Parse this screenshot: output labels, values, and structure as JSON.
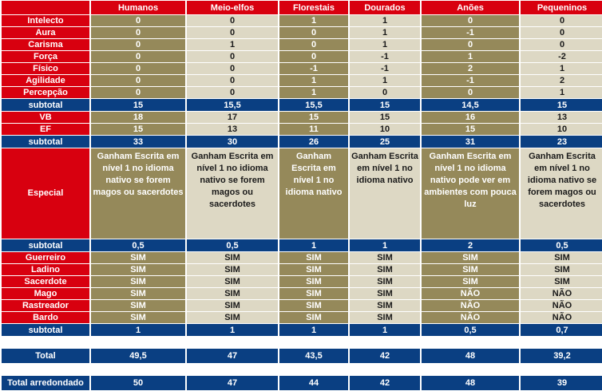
{
  "columns": [
    "Humanos",
    "Meio-elfos",
    "Florestais",
    "Dourados",
    "Anões",
    "Pequeninos"
  ],
  "attributes": [
    {
      "label": "Intelecto",
      "values": [
        "0",
        "0",
        "1",
        "1",
        "0",
        "0"
      ]
    },
    {
      "label": "Aura",
      "values": [
        "0",
        "0",
        "0",
        "1",
        "-1",
        "0"
      ]
    },
    {
      "label": "Carisma",
      "values": [
        "0",
        "1",
        "0",
        "1",
        "0",
        "0"
      ]
    },
    {
      "label": "Força",
      "values": [
        "0",
        "0",
        "0",
        "-1",
        "1",
        "-2"
      ]
    },
    {
      "label": "Físico",
      "values": [
        "0",
        "0",
        "-1",
        "-1",
        "2",
        "1"
      ]
    },
    {
      "label": "Agilidade",
      "values": [
        "0",
        "0",
        "1",
        "1",
        "-1",
        "2"
      ]
    },
    {
      "label": "Percepção",
      "values": [
        "0",
        "0",
        "1",
        "0",
        "0",
        "1"
      ]
    }
  ],
  "subtotal_attributes": {
    "label": "subtotal",
    "values": [
      "15",
      "15,5",
      "15,5",
      "15",
      "14,5",
      "15"
    ]
  },
  "stats": [
    {
      "label": "VB",
      "values": [
        "18",
        "17",
        "15",
        "15",
        "16",
        "13"
      ]
    },
    {
      "label": "EF",
      "values": [
        "15",
        "13",
        "11",
        "10",
        "15",
        "10"
      ]
    }
  ],
  "subtotal_stats": {
    "label": "subtotal",
    "values": [
      "33",
      "30",
      "26",
      "25",
      "31",
      "23"
    ]
  },
  "special": {
    "label": "Especial",
    "values": [
      "Ganham Escrita em nível 1 no idioma nativo se forem magos ou sacerdotes",
      "Ganham Escrita em nível 1 no idioma nativo se forem magos ou sacerdotes",
      "Ganham Escrita em nível 1 no idioma nativo",
      "Ganham Escrita em nível 1 no idioma nativo",
      "Ganham Escrita em nível 1 no idioma nativo pode ver em ambientes com pouca luz",
      "Ganham Escrita em nível 1 no idioma nativo se forem magos ou sacerdotes"
    ]
  },
  "subtotal_special": {
    "label": "subtotal",
    "values": [
      "0,5",
      "0,5",
      "1",
      "1",
      "2",
      "0,5"
    ]
  },
  "classes": [
    {
      "label": "Guerreiro",
      "values": [
        "SIM",
        "SIM",
        "SIM",
        "SIM",
        "SIM",
        "SIM"
      ]
    },
    {
      "label": "Ladino",
      "values": [
        "SIM",
        "SIM",
        "SIM",
        "SIM",
        "SIM",
        "SIM"
      ]
    },
    {
      "label": "Sacerdote",
      "values": [
        "SIM",
        "SIM",
        "SIM",
        "SIM",
        "SIM",
        "SIM"
      ]
    },
    {
      "label": "Mago",
      "values": [
        "SIM",
        "SIM",
        "SIM",
        "SIM",
        "NÃO",
        "NÃO"
      ]
    },
    {
      "label": "Rastreador",
      "values": [
        "SIM",
        "SIM",
        "SIM",
        "SIM",
        "NÃO",
        "NÃO"
      ]
    },
    {
      "label": "Bardo",
      "values": [
        "SIM",
        "SIM",
        "SIM",
        "SIM",
        "NÃO",
        "NÃO"
      ]
    }
  ],
  "subtotal_classes": {
    "label": "subtotal",
    "values": [
      "1",
      "1",
      "1",
      "1",
      "0,5",
      "0,7"
    ]
  },
  "total": {
    "label": "Total",
    "values": [
      "49,5",
      "47",
      "43,5",
      "42",
      "48",
      "39,2"
    ]
  },
  "total_rounded": {
    "label": "Total arredondado",
    "values": [
      "50",
      "47",
      "44",
      "42",
      "48",
      "39"
    ]
  },
  "colors": {
    "red": "#d8000f",
    "olive": "#95895a",
    "beige": "#ddd8c4",
    "navy": "#0a3f82"
  }
}
